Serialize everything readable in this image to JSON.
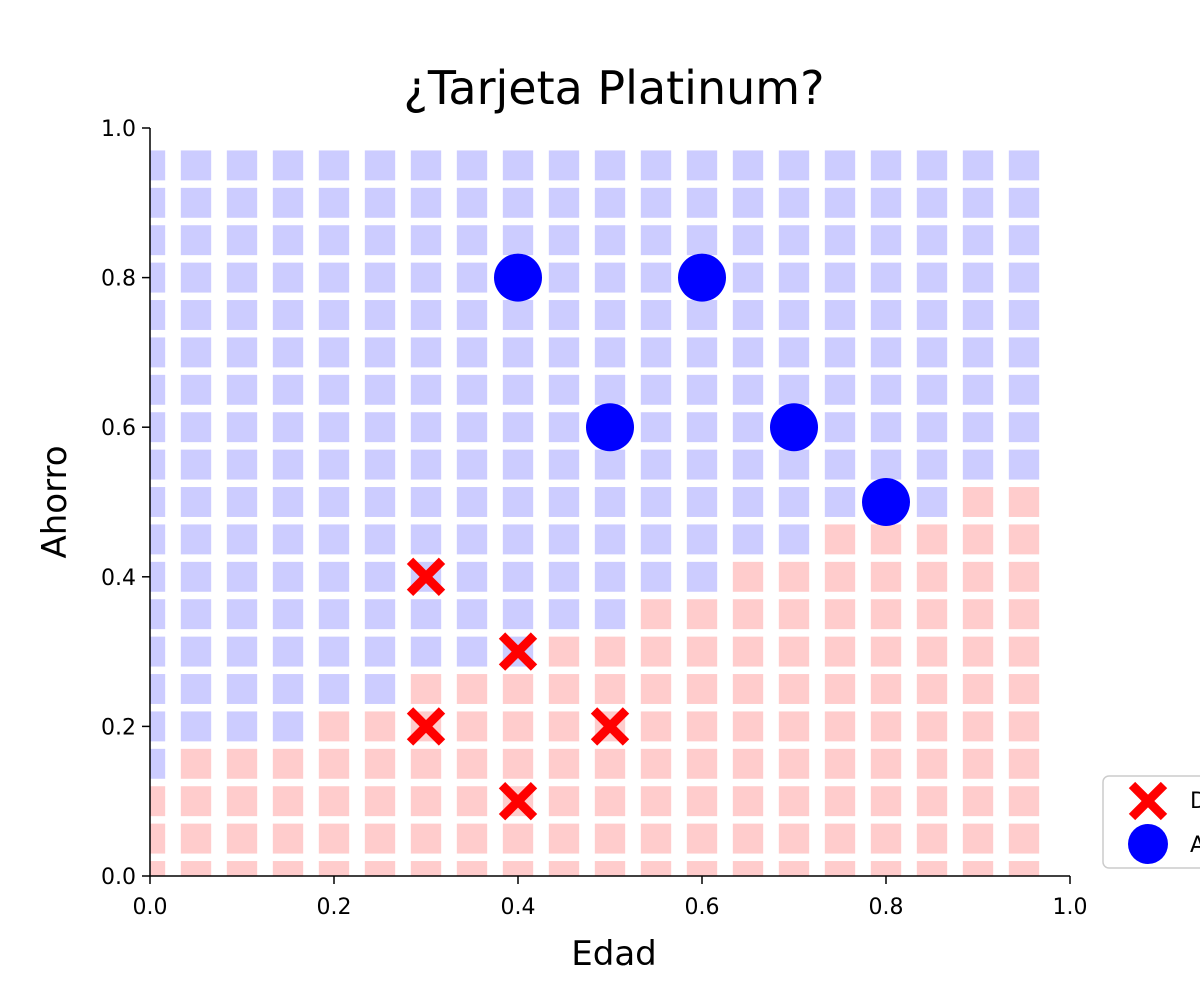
{
  "chart_data": {
    "type": "scatter",
    "title": "¿Tarjeta Platinum?",
    "xlabel": "Edad",
    "ylabel": "Ahorro",
    "xlim": [
      0.0,
      1.0
    ],
    "ylim": [
      0.0,
      1.0
    ],
    "xticks": [
      "0.0",
      "0.2",
      "0.4",
      "0.6",
      "0.8",
      "1.0"
    ],
    "yticks": [
      "0.0",
      "0.2",
      "0.4",
      "0.6",
      "0.8",
      "1.0"
    ],
    "grid": false,
    "legend_position": "lower-right (partially cut off)",
    "legend_labels": [
      "D",
      "A"
    ],
    "colors": {
      "denied": "#ff0000",
      "approved": "#0000ff",
      "region_denied": "#ffcccc",
      "region_approved": "#ccccff"
    },
    "series": [
      {
        "marker": "x",
        "points": [
          [
            0.3,
            0.4
          ],
          [
            0.4,
            0.3
          ],
          [
            0.3,
            0.2
          ],
          [
            0.5,
            0.2
          ],
          [
            0.4,
            0.1
          ]
        ]
      },
      {
        "marker": "o",
        "points": [
          [
            0.4,
            0.8
          ],
          [
            0.6,
            0.8
          ],
          [
            0.5,
            0.6
          ],
          [
            0.7,
            0.6
          ],
          [
            0.8,
            0.5
          ]
        ]
      }
    ],
    "decision_region": {
      "type": "heatmap",
      "x_columns": [
        0.0,
        0.05,
        0.1,
        0.15,
        0.2,
        0.25,
        0.3,
        0.35,
        0.4,
        0.45,
        0.5,
        0.55,
        0.6,
        0.65,
        0.7,
        0.75,
        0.8,
        0.85,
        0.9,
        0.95
      ],
      "boundary_y": [
        0.15,
        0.2,
        0.2,
        0.2,
        0.25,
        0.25,
        0.3,
        0.3,
        0.3,
        0.35,
        0.35,
        0.4,
        0.4,
        0.45,
        0.45,
        0.5,
        0.5,
        0.5,
        0.55,
        0.55
      ],
      "y_max": 0.95,
      "cell_step": 0.05,
      "below_boundary": "denied",
      "above_boundary": "approved"
    }
  }
}
